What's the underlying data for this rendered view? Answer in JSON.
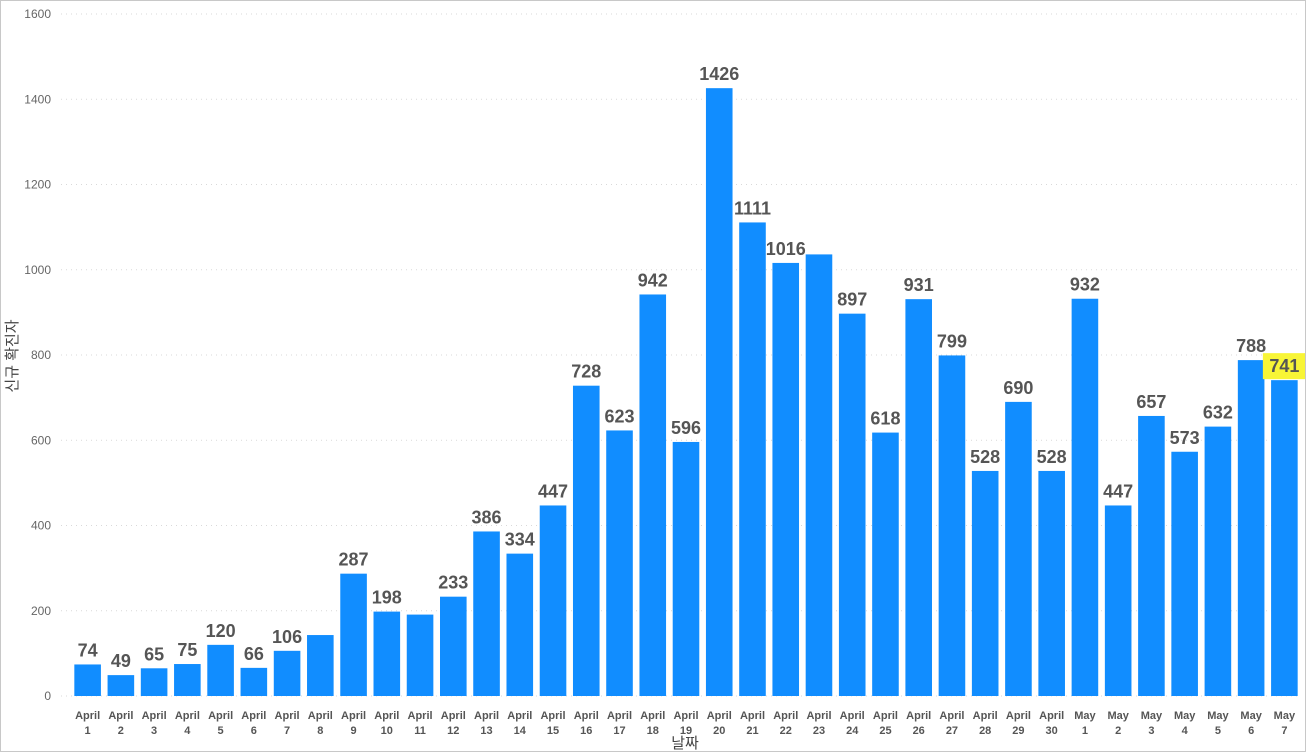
{
  "chart_data": {
    "type": "bar",
    "title": "",
    "xlabel": "날짜",
    "ylabel": "신규 확진자",
    "ylim": [
      0,
      1600
    ],
    "yticks": [
      0,
      200,
      400,
      600,
      800,
      1000,
      1200,
      1400,
      1600
    ],
    "grid": true,
    "bar_color": "#118DFF",
    "highlight_color": "#F8F536",
    "highlight_index": 36,
    "categories": [
      [
        "April",
        "1"
      ],
      [
        "April",
        "2"
      ],
      [
        "April",
        "3"
      ],
      [
        "April",
        "4"
      ],
      [
        "April",
        "5"
      ],
      [
        "April",
        "6"
      ],
      [
        "April",
        "7"
      ],
      [
        "April",
        "8"
      ],
      [
        "April",
        "9"
      ],
      [
        "April",
        "10"
      ],
      [
        "April",
        "11"
      ],
      [
        "April",
        "12"
      ],
      [
        "April",
        "13"
      ],
      [
        "April",
        "14"
      ],
      [
        "April",
        "15"
      ],
      [
        "April",
        "16"
      ],
      [
        "April",
        "17"
      ],
      [
        "April",
        "18"
      ],
      [
        "April",
        "19"
      ],
      [
        "April",
        "20"
      ],
      [
        "April",
        "21"
      ],
      [
        "April",
        "22"
      ],
      [
        "April",
        "23"
      ],
      [
        "April",
        "24"
      ],
      [
        "April",
        "25"
      ],
      [
        "April",
        "26"
      ],
      [
        "April",
        "27"
      ],
      [
        "April",
        "28"
      ],
      [
        "April",
        "29"
      ],
      [
        "April",
        "30"
      ],
      [
        "May",
        "1"
      ],
      [
        "May",
        "2"
      ],
      [
        "May",
        "3"
      ],
      [
        "May",
        "4"
      ],
      [
        "May",
        "5"
      ],
      [
        "May",
        "6"
      ],
      [
        "May",
        "7"
      ]
    ],
    "values": [
      74,
      49,
      65,
      75,
      120,
      66,
      106,
      143,
      287,
      198,
      191,
      233,
      386,
      334,
      447,
      728,
      623,
      942,
      596,
      1426,
      1111,
      1016,
      1036,
      897,
      618,
      931,
      799,
      528,
      690,
      528,
      932,
      447,
      657,
      573,
      632,
      788,
      741
    ],
    "data_labels": [
      "74",
      "49",
      "65",
      "75",
      "120",
      "66",
      "106",
      "",
      "287",
      "198",
      "",
      "233",
      "386",
      "334",
      "447",
      "728",
      "623",
      "942",
      "596",
      "1426",
      "1111",
      "1016",
      "",
      "897",
      "618",
      "931",
      "799",
      "528",
      "690",
      "528",
      "932",
      "447",
      "657",
      "573",
      "632",
      "788",
      "741"
    ]
  }
}
